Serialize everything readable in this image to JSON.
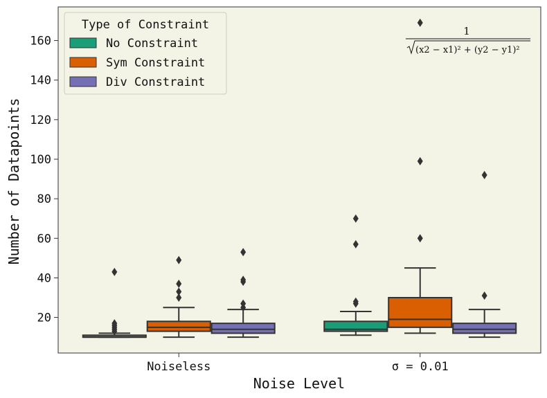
{
  "chart_data": {
    "type": "boxplot",
    "title": "",
    "xlabel": "Noise Level",
    "ylabel": "Number of Datapoints",
    "ylim": [
      2,
      177
    ],
    "yticks": [
      20,
      40,
      60,
      80,
      100,
      120,
      140,
      160
    ],
    "categories": [
      "Noiseless",
      "σ = 0.01"
    ],
    "legend": {
      "title": "Type of Constraint",
      "placement": "top-left",
      "entries": [
        "No Constraint",
        "Sym Constraint",
        "Div Constraint"
      ]
    },
    "annotation": {
      "numerator": "1",
      "denominator": "(x2 − x1)² + (y2 − y1)²",
      "placement": "top-right"
    },
    "colors": {
      "background": "#f3f3e6",
      "edge": "#333333",
      "no": "#1b9e77",
      "sym": "#d95f02",
      "div": "#7570b3"
    },
    "series": [
      {
        "name": "No Constraint",
        "color_key": "no",
        "boxes": [
          {
            "whislo": 10,
            "q1": 10,
            "med": 10,
            "q3": 11,
            "whishi": 12,
            "fliers": [
              13,
              14,
              15,
              16,
              17,
              43
            ]
          },
          {
            "whislo": 11,
            "q1": 13,
            "med": 14,
            "q3": 18,
            "whishi": 23,
            "fliers": [
              27,
              28,
              57,
              70
            ]
          }
        ]
      },
      {
        "name": "Sym Constraint",
        "color_key": "sym",
        "boxes": [
          {
            "whislo": 10,
            "q1": 13,
            "med": 15,
            "q3": 18,
            "whishi": 25,
            "fliers": [
              30,
              33,
              37,
              49
            ]
          },
          {
            "whislo": 12,
            "q1": 15,
            "med": 19,
            "q3": 30,
            "whishi": 45,
            "fliers": [
              60,
              99,
              169
            ]
          }
        ]
      },
      {
        "name": "Div Constraint",
        "color_key": "div",
        "boxes": [
          {
            "whislo": 10,
            "q1": 12,
            "med": 14,
            "q3": 17,
            "whishi": 24,
            "fliers": [
              25,
              27,
              38,
              39,
              53
            ]
          },
          {
            "whislo": 10,
            "q1": 12,
            "med": 14,
            "q3": 17,
            "whishi": 24,
            "fliers": [
              31,
              92
            ]
          }
        ]
      }
    ]
  }
}
